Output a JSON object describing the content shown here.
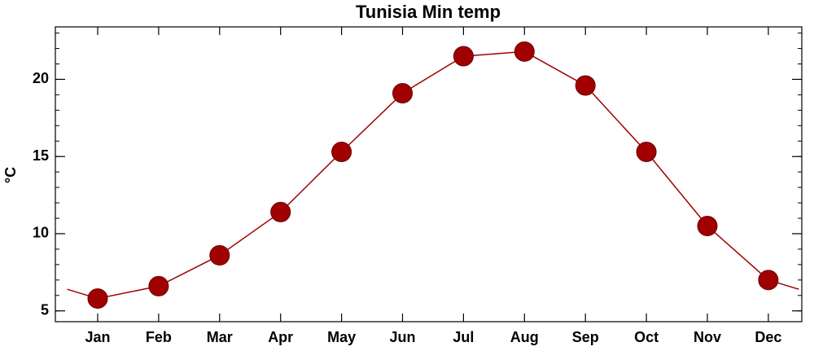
{
  "chart_data": {
    "type": "line",
    "title": "Tunisia Min temp",
    "y_label": "°C",
    "categories": [
      "Jan",
      "Feb",
      "Mar",
      "Apr",
      "May",
      "Jun",
      "Jul",
      "Aug",
      "Sep",
      "Oct",
      "Nov",
      "Dec"
    ],
    "values": [
      5.8,
      6.6,
      8.6,
      11.4,
      15.3,
      19.1,
      21.5,
      21.8,
      19.6,
      15.3,
      10.5,
      7.0
    ],
    "color": "#a00000",
    "ylim": [
      4.3,
      23.4
    ],
    "yticks": [
      5,
      10,
      15,
      20
    ]
  }
}
